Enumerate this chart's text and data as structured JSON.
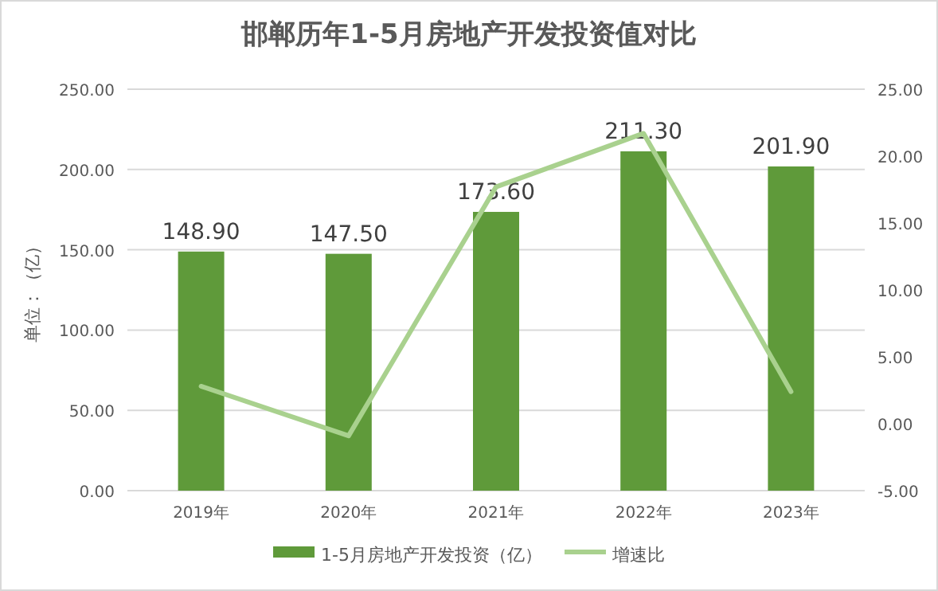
{
  "chart_data": {
    "type": "bar",
    "title": "邯郸历年1-5月房地产开发投资值对比",
    "ylabel": "单位：（亿）",
    "categories": [
      "2019年",
      "2020年",
      "2021年",
      "2022年",
      "2023年"
    ],
    "series": [
      {
        "name": "1-5月房地产开发投资（亿）",
        "color": "#5f9a3a",
        "values": [
          148.9,
          147.5,
          173.6,
          211.3,
          201.9
        ],
        "value_labels": [
          "148.90",
          "147.50",
          "173.60",
          "211.30",
          "201.90"
        ]
      },
      {
        "name": "增速比",
        "type": "line",
        "axis": "y2",
        "color": "#a9d18e",
        "values": [
          2.8,
          -0.9,
          17.7,
          21.7,
          2.4
        ]
      }
    ],
    "ylim": [
      0,
      250
    ],
    "yticks": [
      {
        "value": 0,
        "label": "0.00"
      },
      {
        "value": 50,
        "label": "50.00"
      },
      {
        "value": 100,
        "label": "100.00"
      },
      {
        "value": 150,
        "label": "150.00"
      },
      {
        "value": 200,
        "label": "200.00"
      },
      {
        "value": 250,
        "label": "250.00"
      }
    ],
    "y2lim": [
      -5,
      25
    ],
    "y2ticks": [
      {
        "value": -5,
        "label": "-5.00"
      },
      {
        "value": 0,
        "label": "0.00"
      },
      {
        "value": 5,
        "label": "5.00"
      },
      {
        "value": 10,
        "label": "10.00"
      },
      {
        "value": 15,
        "label": "15.00"
      },
      {
        "value": 20,
        "label": "20.00"
      },
      {
        "value": 25,
        "label": "25.00"
      }
    ],
    "grid": "y",
    "legend": "bottom"
  }
}
